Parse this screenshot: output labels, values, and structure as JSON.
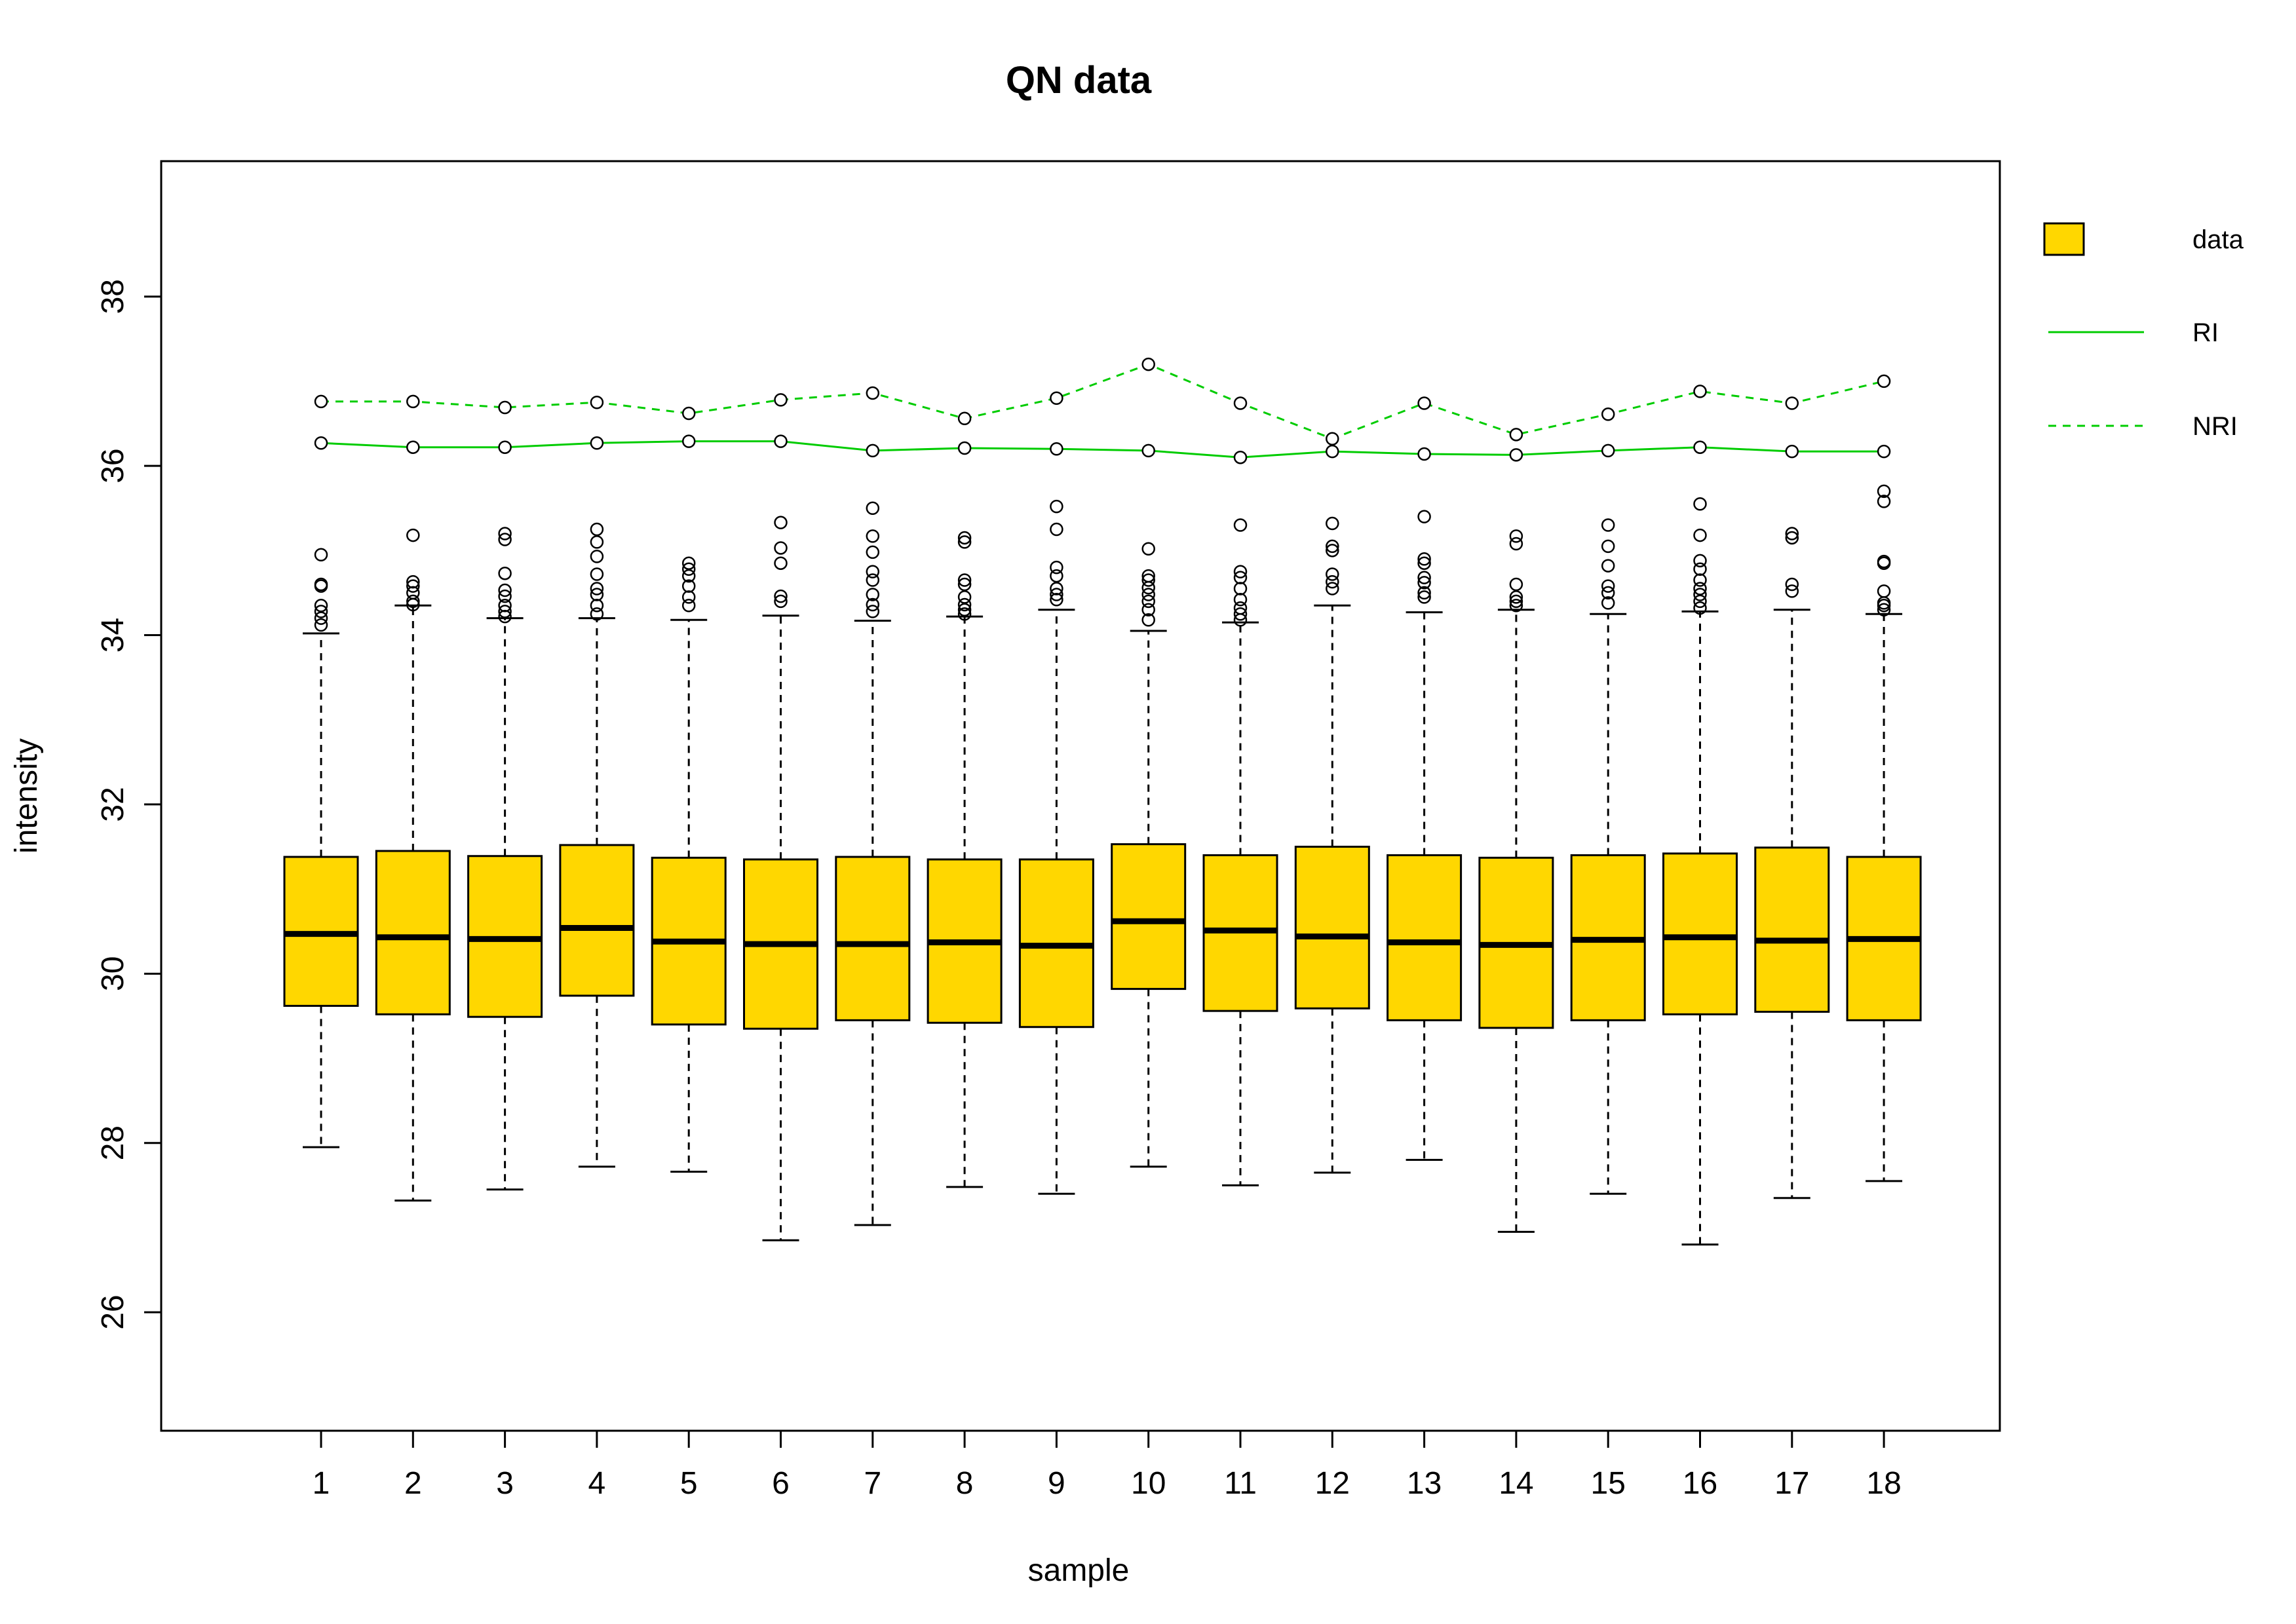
{
  "chart_data": {
    "type": "box",
    "title": "QN data",
    "xlabel": "sample",
    "ylabel": "intensity",
    "ylim": [
      24.6,
      39.6
    ],
    "yticks": [
      26,
      28,
      30,
      32,
      34,
      36,
      38
    ],
    "categories": [
      "1",
      "2",
      "3",
      "4",
      "5",
      "6",
      "7",
      "8",
      "9",
      "10",
      "11",
      "12",
      "13",
      "14",
      "15",
      "16",
      "17",
      "18"
    ],
    "grid": false,
    "legend_position": "right",
    "box_color": "#FFD700",
    "boxes": [
      {
        "sample": "1",
        "whisker_low": 27.95,
        "q1": 29.62,
        "median": 30.47,
        "q3": 31.38,
        "whisker_high": 34.02,
        "outliers": [
          34.12,
          34.2,
          34.28,
          34.35,
          34.58,
          34.6,
          34.95
        ]
      },
      {
        "sample": "2",
        "whisker_low": 27.32,
        "q1": 29.52,
        "median": 30.43,
        "q3": 31.45,
        "whisker_high": 34.35,
        "outliers": [
          34.36,
          34.4,
          34.5,
          34.58,
          34.63,
          35.18
        ]
      },
      {
        "sample": "3",
        "whisker_low": 27.45,
        "q1": 29.49,
        "median": 30.41,
        "q3": 31.39,
        "whisker_high": 34.2,
        "outliers": [
          34.22,
          34.28,
          34.35,
          34.46,
          34.53,
          34.73,
          35.13,
          35.2
        ]
      },
      {
        "sample": "4",
        "whisker_low": 27.72,
        "q1": 29.74,
        "median": 30.54,
        "q3": 31.52,
        "whisker_high": 34.2,
        "outliers": [
          34.25,
          34.35,
          34.48,
          34.55,
          34.72,
          34.93,
          35.1,
          35.25
        ]
      },
      {
        "sample": "5",
        "whisker_low": 27.66,
        "q1": 29.4,
        "median": 30.38,
        "q3": 31.37,
        "whisker_high": 34.18,
        "outliers": [
          34.35,
          34.45,
          34.58,
          34.7,
          34.78,
          34.85
        ]
      },
      {
        "sample": "6",
        "whisker_low": 26.85,
        "q1": 29.35,
        "median": 30.35,
        "q3": 31.35,
        "whisker_high": 34.23,
        "outliers": [
          34.4,
          34.46,
          34.85,
          35.03,
          35.33
        ]
      },
      {
        "sample": "7",
        "whisker_low": 27.03,
        "q1": 29.45,
        "median": 30.35,
        "q3": 31.38,
        "whisker_high": 34.17,
        "outliers": [
          34.28,
          34.36,
          34.48,
          34.65,
          34.75,
          34.98,
          35.17,
          35.5
        ]
      },
      {
        "sample": "8",
        "whisker_low": 27.48,
        "q1": 29.42,
        "median": 30.37,
        "q3": 31.35,
        "whisker_high": 34.22,
        "outliers": [
          34.25,
          34.3,
          34.36,
          34.45,
          34.6,
          34.65,
          35.1,
          35.15
        ]
      },
      {
        "sample": "9",
        "whisker_low": 27.4,
        "q1": 29.37,
        "median": 30.33,
        "q3": 31.35,
        "whisker_high": 34.3,
        "outliers": [
          34.42,
          34.48,
          34.55,
          34.7,
          34.8,
          35.25,
          35.52
        ]
      },
      {
        "sample": "10",
        "whisker_low": 27.72,
        "q1": 29.82,
        "median": 30.62,
        "q3": 31.53,
        "whisker_high": 34.05,
        "outliers": [
          34.18,
          34.3,
          34.4,
          34.48,
          34.56,
          34.65,
          34.7,
          35.02
        ]
      },
      {
        "sample": "11",
        "whisker_low": 27.5,
        "q1": 29.56,
        "median": 30.51,
        "q3": 31.4,
        "whisker_high": 34.15,
        "outliers": [
          34.18,
          34.25,
          34.32,
          34.42,
          34.55,
          34.68,
          34.75,
          35.3
        ]
      },
      {
        "sample": "12",
        "whisker_low": 27.65,
        "q1": 29.59,
        "median": 30.44,
        "q3": 31.5,
        "whisker_high": 34.35,
        "outliers": [
          34.55,
          34.63,
          34.72,
          35.0,
          35.05,
          35.32
        ]
      },
      {
        "sample": "13",
        "whisker_low": 27.8,
        "q1": 29.45,
        "median": 30.37,
        "q3": 31.4,
        "whisker_high": 34.27,
        "outliers": [
          34.45,
          34.5,
          34.62,
          34.68,
          34.85,
          34.9,
          35.4
        ]
      },
      {
        "sample": "14",
        "whisker_low": 26.95,
        "q1": 29.36,
        "median": 30.34,
        "q3": 31.37,
        "whisker_high": 34.3,
        "outliers": [
          34.35,
          34.4,
          34.45,
          34.6,
          35.08,
          35.17
        ]
      },
      {
        "sample": "15",
        "whisker_low": 27.4,
        "q1": 29.45,
        "median": 30.4,
        "q3": 31.4,
        "whisker_high": 34.25,
        "outliers": [
          34.38,
          34.5,
          34.58,
          34.82,
          35.05,
          35.3
        ]
      },
      {
        "sample": "16",
        "whisker_low": 26.8,
        "q1": 29.52,
        "median": 30.43,
        "q3": 31.42,
        "whisker_high": 34.28,
        "outliers": [
          34.32,
          34.4,
          34.48,
          34.55,
          34.65,
          34.78,
          34.88,
          35.18,
          35.55
        ]
      },
      {
        "sample": "17",
        "whisker_low": 27.35,
        "q1": 29.55,
        "median": 30.39,
        "q3": 31.49,
        "whisker_high": 34.3,
        "outliers": [
          34.52,
          34.6,
          35.15,
          35.2
        ]
      },
      {
        "sample": "18",
        "whisker_low": 27.55,
        "q1": 29.45,
        "median": 30.41,
        "q3": 31.38,
        "whisker_high": 34.25,
        "outliers": [
          34.3,
          34.35,
          34.38,
          34.52,
          34.85,
          34.87,
          35.58,
          35.7
        ]
      }
    ],
    "series": [
      {
        "name": "RI",
        "color": "#00CC00",
        "style": "solid",
        "values": [
          36.27,
          36.22,
          36.22,
          36.27,
          36.29,
          36.29,
          36.18,
          36.21,
          36.2,
          36.18,
          36.1,
          36.17,
          36.14,
          36.13,
          36.18,
          36.22,
          36.17,
          36.17
        ]
      },
      {
        "name": "NRI",
        "color": "#00CC00",
        "style": "dashed",
        "values": [
          36.76,
          36.76,
          36.69,
          36.75,
          36.62,
          36.78,
          36.86,
          36.56,
          36.8,
          37.2,
          36.74,
          36.32,
          36.74,
          36.37,
          36.61,
          36.88,
          36.74,
          37.0
        ]
      }
    ],
    "legend": [
      {
        "label": "data",
        "kind": "box"
      },
      {
        "label": "RI",
        "kind": "solid-line"
      },
      {
        "label": "NRI",
        "kind": "dashed-line"
      }
    ]
  }
}
